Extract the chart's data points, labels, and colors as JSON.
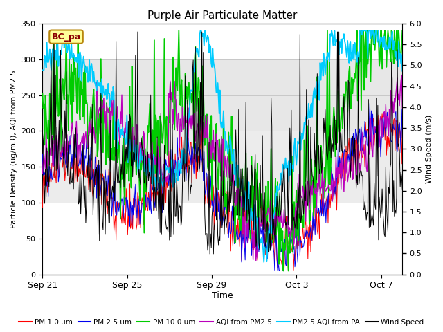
{
  "title": "Purple Air Particulate Matter",
  "xlabel": "Time",
  "ylabel_left": "Particle Density (ug/m3), AQI from PM2.5",
  "ylabel_right": "Wind Speed (m/s)",
  "ylim_left": [
    0,
    350
  ],
  "ylim_right": [
    0.0,
    6.0
  ],
  "yticks_left": [
    0,
    50,
    100,
    150,
    200,
    250,
    300,
    350
  ],
  "yticks_right": [
    0.0,
    0.5,
    1.0,
    1.5,
    2.0,
    2.5,
    3.0,
    3.5,
    4.0,
    4.5,
    5.0,
    5.5,
    6.0
  ],
  "xtick_labels": [
    "Sep 21",
    "Sep 25",
    "Sep 29",
    "Oct 3",
    "Oct 7"
  ],
  "xtick_positions": [
    0,
    4,
    8,
    12,
    16
  ],
  "xlim": [
    0,
    17
  ],
  "annotation_text": "BC_pa",
  "annotation_color": "#8B0000",
  "annotation_bg": "#FFFF99",
  "annotation_border": "#B8860B",
  "bg_band1": [
    100,
    200
  ],
  "bg_band2": [
    200,
    300
  ],
  "bg_color1": "#E8E8E8",
  "bg_color2": "#D8D8D8",
  "colors": {
    "PM1": "#FF0000",
    "PM25": "#0000EE",
    "PM10": "#00CC00",
    "AQI_PM25": "#BB00BB",
    "PM25_AQI_PA": "#00CCFF",
    "WindSpeed": "#000000"
  },
  "legend": [
    {
      "label": "PM 1.0 um",
      "color": "#FF0000"
    },
    {
      "label": "PM 2.5 um",
      "color": "#0000EE"
    },
    {
      "label": "PM 10.0 um",
      "color": "#00CC00"
    },
    {
      "label": "AQI from PM2.5",
      "color": "#BB00BB"
    },
    {
      "label": "PM2.5 AQI from PA",
      "color": "#00CCFF"
    },
    {
      "label": "Wind Speed",
      "color": "#000000"
    }
  ],
  "figsize": [
    6.4,
    4.8
  ],
  "dpi": 100,
  "title_fontsize": 11,
  "label_fontsize": 8,
  "tick_fontsize": 8,
  "legend_fontsize": 7.5,
  "lw_thin": 0.7,
  "lw_medium": 1.0,
  "lw_thick": 1.3,
  "n_points": 500,
  "seed": 99
}
